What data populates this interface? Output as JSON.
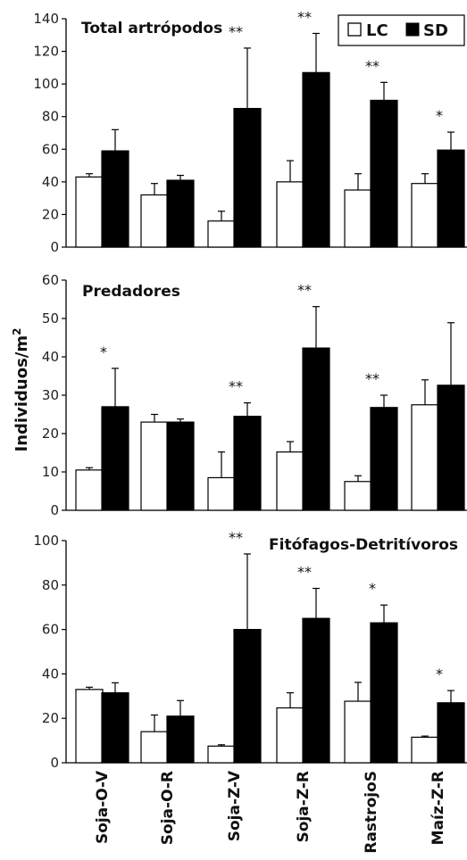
{
  "chart_data": {
    "type": "bar",
    "ylabel": "Individuos/m",
    "ylabel_sup": "2",
    "categories": [
      "Soja-O-V",
      "Soja-O-R",
      "Soja-Z-V",
      "Soja-Z-R",
      "RastrojoS",
      "Maíz-Z-R"
    ],
    "legend": {
      "position": "top-right",
      "items": [
        {
          "name": "LC",
          "color": "#ffffff"
        },
        {
          "name": "SD",
          "color": "#000000"
        }
      ]
    },
    "panels": [
      {
        "title": "Total artrópodos",
        "ylim": [
          0,
          140
        ],
        "yticks": [
          0,
          20,
          40,
          60,
          80,
          100,
          120,
          140
        ],
        "series": [
          {
            "name": "LC",
            "values": [
              43,
              32,
              16,
              40,
              35,
              39
            ],
            "errors": [
              2,
              7,
              6,
              13,
              10,
              6
            ]
          },
          {
            "name": "SD",
            "values": [
              59,
              41,
              85,
              107,
              90,
              59.5
            ],
            "errors": [
              13,
              3,
              37,
              24,
              11,
              11
            ]
          }
        ],
        "significance": [
          "",
          "",
          "**",
          "**",
          "**",
          "*"
        ]
      },
      {
        "title": "Predadores",
        "ylim": [
          0,
          60
        ],
        "yticks": [
          0,
          10,
          20,
          30,
          40,
          50,
          60
        ],
        "series": [
          {
            "name": "LC",
            "values": [
              10.5,
              23,
              8.5,
              15.2,
              7.5,
              27.5
            ],
            "errors": [
              0.6,
              2,
              6.7,
              2.7,
              1.5,
              6.5
            ]
          },
          {
            "name": "SD",
            "values": [
              27,
              23,
              24.5,
              42.3,
              26.8,
              32.6
            ],
            "errors": [
              10,
              0.8,
              3.5,
              10.8,
              3.2,
              16.3
            ]
          }
        ],
        "significance": [
          "*",
          "",
          "**",
          "**",
          "**",
          ""
        ]
      },
      {
        "title": "Fitófagos-Detritívoros",
        "ylim": [
          0,
          100
        ],
        "yticks": [
          0,
          20,
          40,
          60,
          80,
          100
        ],
        "series": [
          {
            "name": "LC",
            "values": [
              33,
              14,
              7.5,
              24.7,
              27.7,
              11.5
            ],
            "errors": [
              1,
              7.5,
              0.6,
              6.8,
              8.5,
              0.5
            ]
          },
          {
            "name": "SD",
            "values": [
              31.5,
              21,
              60,
              65,
              63,
              27
            ],
            "errors": [
              4.5,
              7,
              34,
              13.5,
              8,
              5.5
            ]
          }
        ],
        "significance": [
          "",
          "",
          "**",
          "**",
          "*",
          "*"
        ]
      }
    ]
  }
}
